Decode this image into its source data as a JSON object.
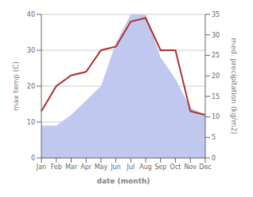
{
  "chart_data": {
    "type": "line",
    "categories": [
      "Jan",
      "Feb",
      "Mar",
      "Apr",
      "May",
      "Jun",
      "Jul",
      "Aug",
      "Sep",
      "Oct",
      "Nov",
      "Dec"
    ],
    "series": [
      {
        "type": "area",
        "color": "#c0c8f0",
        "values": [
          9,
          9,
          12,
          16,
          20,
          32,
          40,
          40,
          28,
          22,
          14,
          12
        ]
      },
      {
        "type": "line",
        "color": "#b03030",
        "values": [
          13,
          20,
          23,
          24,
          30,
          31,
          38,
          39,
          30,
          30,
          13,
          12
        ]
      }
    ],
    "xlabel": "date (month)",
    "ylabel": "max temp (C)",
    "y2label": "med. precipitation (kg/m2)",
    "ylim": [
      0,
      40
    ],
    "yticks": [
      0,
      10,
      20,
      30,
      40
    ],
    "y2lim": [
      0,
      35
    ],
    "y2ticks": [
      0,
      5,
      10,
      15,
      20,
      25,
      30,
      35
    ],
    "grid": true
  }
}
